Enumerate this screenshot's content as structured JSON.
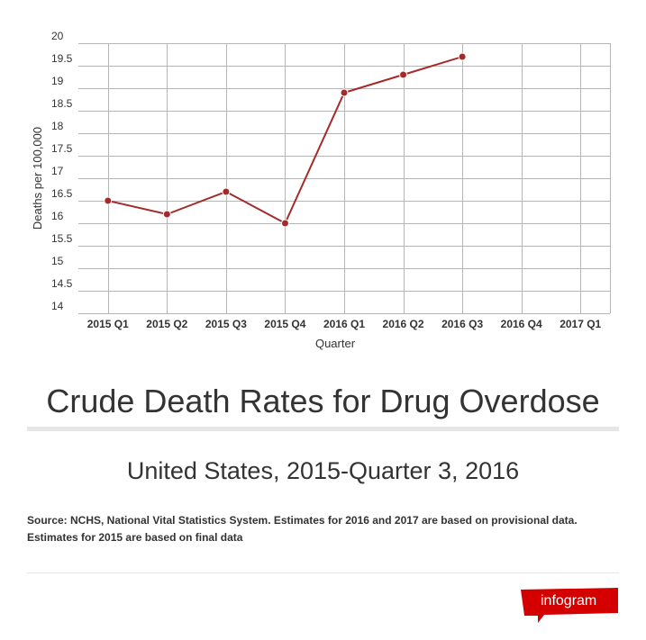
{
  "chart_data": {
    "type": "line",
    "title": "Crude Death Rates for Drug Overdose",
    "subtitle": "United States, 2015-Quarter 3, 2016",
    "xlabel": "Quarter",
    "ylabel": "Deaths per 100,000",
    "categories": [
      "2015 Q1",
      "2015 Q2",
      "2015 Q3",
      "2015 Q4",
      "2016 Q1",
      "2016 Q2",
      "2016 Q3",
      "2016 Q4",
      "2017 Q1"
    ],
    "y_ticks": [
      "20",
      "19.5",
      "19",
      "18.5",
      "18",
      "17.5",
      "17",
      "16.5",
      "16",
      "15.5",
      "15",
      "14.5",
      "14"
    ],
    "ylim": [
      14,
      20
    ],
    "grid": true,
    "series": [
      {
        "values": [
          16.5,
          16.2,
          16.7,
          16.0,
          18.9,
          19.3,
          19.7,
          null,
          null
        ]
      }
    ]
  },
  "source_note": "Source: NCHS, National Vital Statistics System. Estimates for 2016 and 2017 are based on provisional data. Estimates for 2015 are based on final data",
  "brand": {
    "name": "infogram"
  },
  "colors": {
    "series": "#a52a2a",
    "badge": "#d40000",
    "grid": "#b5b5b5",
    "text": "#333333"
  }
}
